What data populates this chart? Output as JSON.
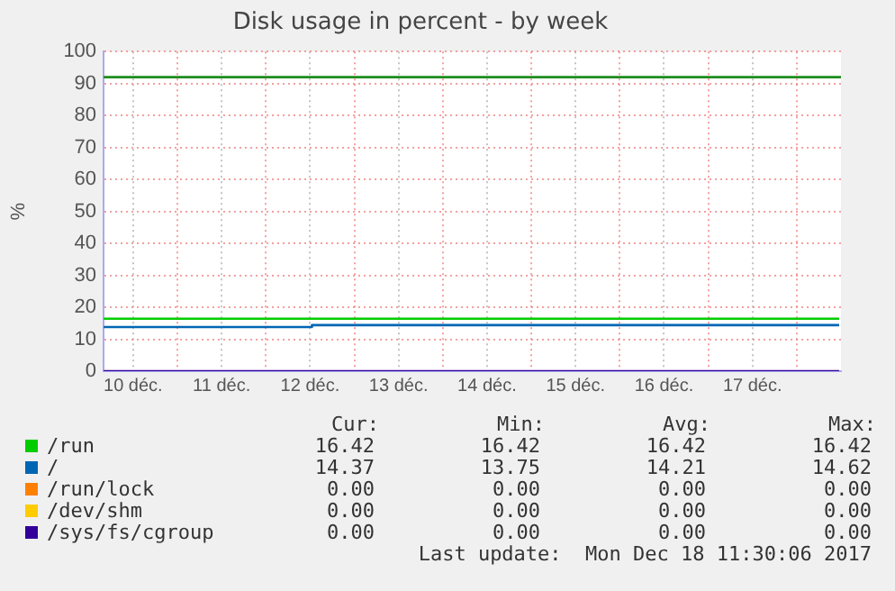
{
  "chart_data": {
    "type": "line",
    "title": "Disk usage in percent - by week",
    "ylabel": "%",
    "xlim": [
      "2017-12-10T04:00",
      "2017-12-18T12:00"
    ],
    "xticks": [
      {
        "value": "2017-12-10T12:00",
        "label": "10 déc."
      },
      {
        "value": "2017-12-11T00:00",
        "label": null
      },
      {
        "value": "2017-12-11T12:00",
        "label": "11 déc."
      },
      {
        "value": "2017-12-12T00:00",
        "label": null
      },
      {
        "value": "2017-12-12T12:00",
        "label": "12 déc."
      },
      {
        "value": "2017-12-13T00:00",
        "label": null
      },
      {
        "value": "2017-12-13T12:00",
        "label": "13 déc."
      },
      {
        "value": "2017-12-14T00:00",
        "label": null
      },
      {
        "value": "2017-12-14T12:00",
        "label": "14 déc."
      },
      {
        "value": "2017-12-15T00:00",
        "label": null
      },
      {
        "value": "2017-12-15T12:00",
        "label": "15 déc."
      },
      {
        "value": "2017-12-16T00:00",
        "label": null
      },
      {
        "value": "2017-12-16T12:00",
        "label": "16 déc."
      },
      {
        "value": "2017-12-17T00:00",
        "label": null
      },
      {
        "value": "2017-12-17T12:00",
        "label": "17 déc."
      },
      {
        "value": "2017-12-18T00:00",
        "label": null
      }
    ],
    "ylim": [
      0,
      100
    ],
    "yticks": [
      0,
      10,
      20,
      30,
      40,
      50,
      60,
      70,
      80,
      90,
      100
    ],
    "grid": true,
    "legend": "bottom",
    "marker": "none",
    "line_style": "solid",
    "ref_lines": [
      {
        "axis": "y",
        "value": 92,
        "color": "#1e8c1e"
      }
    ],
    "series": [
      {
        "name": "/run",
        "color": "#00cc00",
        "x": [
          "2017-12-10T04:00",
          "2017-12-18T11:30"
        ],
        "values": [
          16.4,
          16.4
        ]
      },
      {
        "name": "/",
        "color": "#0066b3",
        "type": "step",
        "x": [
          "2017-12-10T04:00",
          "2017-12-12T12:30",
          "2017-12-18T11:30"
        ],
        "values": [
          13.8,
          14.4,
          14.4
        ]
      },
      {
        "name": "/run/lock",
        "color": "#ff8000"
      },
      {
        "name": "/dev/shm",
        "color": "#ffcc00"
      },
      {
        "name": "/sys/fs/cgroup",
        "color": "#330099",
        "x": [
          "2017-12-10T04:00",
          "2017-12-18T11:30"
        ],
        "values": [
          0,
          0
        ]
      }
    ],
    "annotations": [
      "Cur:",
      "Min:",
      "Avg:",
      "Max:",
      "16.42",
      "16.42",
      "16.42",
      "16.42",
      "14.37",
      "13.75",
      "14.21",
      "14.62",
      "0.00",
      "0.00",
      "0.00",
      "0.00",
      "0.00",
      "0.00",
      "0.00",
      "0.00",
      "0.00",
      "0.00",
      "0.00",
      "0.00",
      "Last update:  Mon Dec 18 11:30:06 2017"
    ]
  }
}
